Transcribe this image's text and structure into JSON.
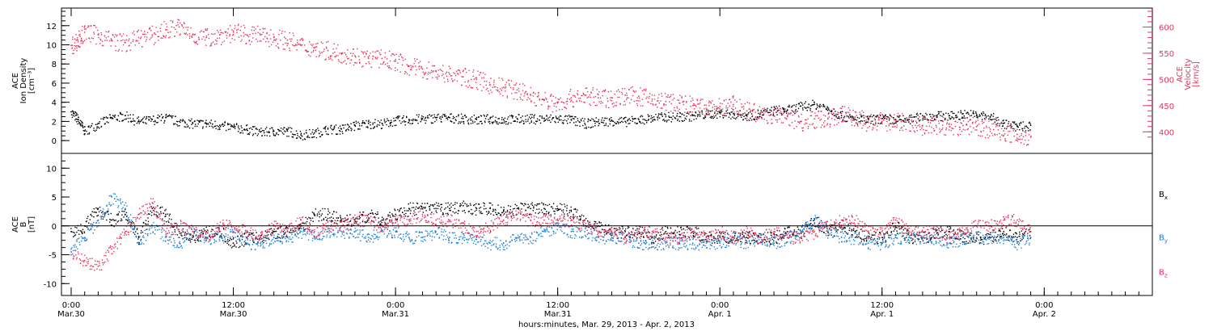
{
  "colors": {
    "black": "#000000",
    "red": "#e8335f",
    "blue": "#1f7fd6"
  },
  "time_axis": {
    "label": "hours:minutes, Mar. 29, 2013 - Apr. 2, 2013",
    "range_hours": [
      0,
      80
    ],
    "ticks": [
      {
        "h": 0,
        "time": "0:00",
        "date": "Mar.30"
      },
      {
        "h": 12,
        "time": "12:00",
        "date": "Mar.30"
      },
      {
        "h": 24,
        "time": "0:00",
        "date": "Mar.31"
      },
      {
        "h": 36,
        "time": "12:00",
        "date": "Mar.31"
      },
      {
        "h": 48,
        "time": "0:00",
        "date": "Apr. 1"
      },
      {
        "h": 60,
        "time": "12:00",
        "date": "Apr. 1"
      },
      {
        "h": 72,
        "time": "0:00",
        "date": "Apr. 2"
      }
    ]
  },
  "chart_data": [
    {
      "type": "scatter",
      "ylabel": [
        "ACE",
        "Ion Density",
        "[cm^-3]"
      ],
      "ylim": [
        -1,
        13.5
      ],
      "yticks": [
        0,
        2,
        4,
        6,
        8,
        10,
        12
      ],
      "y2label": [
        "ACE",
        "Velocity",
        "[km/s]"
      ],
      "y2lim": [
        365,
        630
      ],
      "y2ticks": [
        400,
        450,
        500,
        550,
        600
      ],
      "series": [
        {
          "axis": "left",
          "color": "black",
          "x": [
            0,
            0.5,
            1,
            2,
            3,
            4,
            5,
            6,
            7,
            8,
            9,
            10,
            11,
            12,
            13,
            14,
            15,
            16,
            17,
            18,
            19,
            20,
            21,
            22,
            23,
            24,
            25,
            26,
            27,
            28,
            29,
            30,
            31,
            32,
            33,
            34,
            35,
            36,
            37,
            38,
            39,
            40,
            41,
            42,
            43,
            44,
            45,
            46,
            47,
            48,
            49,
            50,
            51,
            52,
            53,
            54,
            55,
            56,
            57,
            58,
            59,
            60,
            61,
            62,
            63,
            64,
            65,
            66,
            67,
            68,
            69,
            70,
            71
          ],
          "values": [
            3.0,
            2.2,
            1.0,
            1.8,
            2.4,
            2.6,
            2.0,
            2.2,
            2.4,
            2.0,
            1.8,
            1.8,
            1.6,
            1.4,
            1.2,
            0.9,
            1.0,
            1.0,
            0.6,
            0.8,
            1.2,
            1.2,
            1.6,
            1.8,
            1.8,
            2.1,
            2.2,
            2.3,
            2.4,
            2.4,
            2.3,
            2.2,
            2.3,
            2.2,
            2.3,
            2.3,
            2.3,
            2.3,
            2.2,
            1.8,
            2.0,
            2.1,
            2.0,
            2.2,
            2.4,
            2.5,
            2.5,
            2.6,
            2.8,
            2.9,
            2.8,
            2.6,
            2.8,
            3.2,
            3.2,
            3.6,
            3.8,
            3.4,
            2.6,
            2.2,
            2.2,
            2.3,
            2.2,
            2.2,
            2.6,
            2.6,
            2.6,
            2.8,
            2.7,
            2.5,
            1.8,
            1.5,
            1.6
          ]
        },
        {
          "axis": "right",
          "color": "red",
          "x": [
            0,
            0.5,
            1,
            2,
            3,
            4,
            5,
            6,
            7,
            8,
            9,
            10,
            11,
            12,
            13,
            14,
            15,
            16,
            17,
            18,
            19,
            20,
            21,
            22,
            23,
            24,
            25,
            26,
            27,
            28,
            29,
            30,
            31,
            32,
            33,
            34,
            35,
            36,
            37,
            38,
            39,
            40,
            41,
            42,
            43,
            44,
            45,
            46,
            47,
            48,
            49,
            50,
            51,
            52,
            53,
            54,
            55,
            56,
            57,
            58,
            59,
            60,
            61,
            62,
            63,
            64,
            65,
            66,
            67,
            68,
            69,
            70,
            71
          ],
          "values": [
            565,
            575,
            590,
            585,
            575,
            570,
            580,
            585,
            595,
            600,
            585,
            580,
            585,
            590,
            585,
            585,
            580,
            575,
            565,
            560,
            555,
            550,
            545,
            540,
            540,
            535,
            525,
            520,
            515,
            510,
            505,
            500,
            490,
            485,
            480,
            470,
            460,
            455,
            465,
            470,
            465,
            465,
            470,
            468,
            462,
            458,
            455,
            450,
            445,
            448,
            452,
            440,
            435,
            430,
            430,
            420,
            425,
            425,
            435,
            428,
            418,
            420,
            420,
            418,
            412,
            412,
            410,
            412,
            410,
            405,
            402,
            395,
            390
          ]
        }
      ]
    },
    {
      "type": "scatter",
      "ylabel": [
        "ACE",
        "B",
        "[nT]"
      ],
      "ylim": [
        -11.5,
        12
      ],
      "yticks": [
        -10,
        -5,
        0,
        5,
        10
      ],
      "zero_line": 0,
      "legend": [
        "Bx",
        "By",
        "Bz"
      ],
      "series": [
        {
          "name": "Bx",
          "color": "black",
          "x": [
            0,
            1,
            2,
            3,
            4,
            5,
            6,
            7,
            8,
            9,
            10,
            11,
            12,
            13,
            14,
            15,
            16,
            17,
            18,
            19,
            20,
            21,
            22,
            23,
            24,
            25,
            26,
            27,
            28,
            29,
            30,
            31,
            32,
            33,
            34,
            35,
            36,
            37,
            38,
            39,
            40,
            41,
            42,
            43,
            44,
            45,
            46,
            47,
            48,
            49,
            50,
            51,
            52,
            53,
            54,
            55,
            56,
            57,
            58,
            59,
            60,
            61,
            62,
            63,
            64,
            65,
            66,
            67,
            68,
            69,
            70,
            71
          ],
          "values": [
            -1,
            0,
            3,
            1,
            2,
            -2,
            3,
            2,
            -1,
            -2,
            -1,
            -1,
            -3,
            -2,
            -2,
            -1,
            -1,
            0,
            2,
            2,
            1,
            1,
            2,
            1,
            2,
            3,
            3,
            3,
            3,
            3.5,
            3,
            3,
            2.5,
            3,
            3,
            3,
            3,
            2.5,
            1,
            0,
            -1,
            -1,
            -1,
            -2,
            -1,
            -1,
            -1,
            -2,
            -2,
            -2,
            -2,
            -2,
            -2,
            -1,
            -1,
            1,
            -1,
            0,
            -1,
            -2,
            -2,
            0,
            -2,
            -2,
            -1,
            -1,
            -2,
            -2,
            -2,
            -1,
            -2,
            -1
          ]
        },
        {
          "name": "By",
          "color": "blue",
          "x": [
            0,
            1,
            2,
            3,
            4,
            5,
            6,
            7,
            8,
            9,
            10,
            11,
            12,
            13,
            14,
            15,
            16,
            17,
            18,
            19,
            20,
            21,
            22,
            23,
            24,
            25,
            26,
            27,
            28,
            29,
            30,
            31,
            32,
            33,
            34,
            35,
            36,
            37,
            38,
            39,
            40,
            41,
            42,
            43,
            44,
            45,
            46,
            47,
            48,
            49,
            50,
            51,
            52,
            53,
            54,
            55,
            56,
            57,
            58,
            59,
            60,
            61,
            62,
            63,
            64,
            65,
            66,
            67,
            68,
            69,
            70,
            71
          ],
          "values": [
            -4,
            -2,
            1,
            5,
            3,
            -3,
            0,
            -2,
            -3,
            -1,
            -2,
            -2,
            -1,
            -3,
            -3,
            -2,
            -2,
            -1,
            -2,
            -1,
            -1,
            -1,
            -2,
            -1,
            -1,
            -2,
            -2,
            -1,
            -2,
            -2,
            -2,
            -3,
            -3,
            -2,
            -2,
            -1,
            0,
            -1,
            -1,
            -2,
            -2,
            -2,
            -3,
            -3,
            -3,
            -3,
            -3,
            -3,
            -3,
            -2,
            -3,
            -2,
            -3,
            -2,
            -1,
            1,
            -1,
            -2,
            -2,
            -3,
            -3,
            -2,
            -2,
            -2,
            -2,
            -3,
            -2,
            -2,
            -2,
            -2,
            -3,
            -2
          ]
        },
        {
          "name": "Bz",
          "color": "red",
          "x": [
            0,
            1,
            2,
            3,
            4,
            5,
            6,
            7,
            8,
            9,
            10,
            11,
            12,
            13,
            14,
            15,
            16,
            17,
            18,
            19,
            20,
            21,
            22,
            23,
            24,
            25,
            26,
            27,
            28,
            29,
            30,
            31,
            32,
            33,
            34,
            35,
            36,
            37,
            38,
            39,
            40,
            41,
            42,
            43,
            44,
            45,
            46,
            47,
            48,
            49,
            50,
            51,
            52,
            53,
            54,
            55,
            56,
            57,
            58,
            59,
            60,
            61,
            62,
            63,
            64,
            65,
            66,
            67,
            68,
            69,
            70,
            71
          ],
          "values": [
            -5,
            -6,
            -7,
            -4,
            -1,
            2,
            4,
            -1,
            0,
            -1,
            -2,
            0,
            0,
            -1,
            -2,
            0,
            -1,
            1,
            -1,
            0,
            0,
            1,
            1,
            0,
            1,
            1,
            2,
            1,
            1,
            0,
            -1,
            0,
            1,
            2,
            1,
            1,
            1,
            1,
            0,
            -1,
            -1,
            -2,
            -1,
            -1,
            -2,
            -2,
            -1,
            -2,
            -1,
            -2,
            -1,
            -2,
            -1,
            -2,
            -2,
            -1,
            0,
            1,
            1,
            -1,
            -1,
            1,
            -1,
            -1,
            -1,
            -2,
            -1,
            0,
            0,
            1,
            1,
            -1
          ]
        }
      ]
    }
  ]
}
